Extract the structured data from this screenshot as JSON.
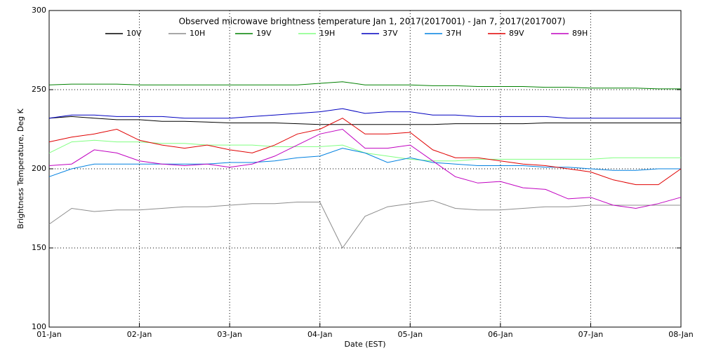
{
  "chart_data": {
    "type": "line",
    "title": "Observed microwave brightness temperature Jan  1, 2017(2017001) - Jan  7, 2017(2017007)",
    "x_label": "Date (EST)",
    "y_label": "Brightness Temperature, Deg K",
    "x": [
      0,
      0.25,
      0.5,
      0.75,
      1,
      1.25,
      1.5,
      1.75,
      2,
      2.25,
      2.5,
      2.75,
      3,
      3.25,
      3.5,
      3.75,
      4,
      4.25,
      4.5,
      4.75,
      5,
      5.25,
      5.5,
      5.75,
      6,
      6.25,
      6.5,
      6.75,
      7
    ],
    "xlim": [
      0,
      7
    ],
    "xticks": [
      {
        "value": 0,
        "label": "01-Jan"
      },
      {
        "value": 1,
        "label": "02-Jan"
      },
      {
        "value": 2,
        "label": "03-Jan"
      },
      {
        "value": 3,
        "label": "04-Jan"
      },
      {
        "value": 4,
        "label": "05-Jan"
      },
      {
        "value": 5,
        "label": "06-Jan"
      },
      {
        "value": 6,
        "label": "07-Jan"
      },
      {
        "value": 7,
        "label": "08-Jan"
      }
    ],
    "ylim": [
      100,
      300
    ],
    "yticks": [
      100,
      150,
      200,
      250,
      300
    ],
    "grid": true,
    "series": [
      {
        "name": "10V",
        "color": "#000000",
        "values": [
          232,
          233,
          232,
          231,
          231,
          230,
          230,
          229.5,
          229,
          229,
          229,
          228.5,
          228,
          228,
          228,
          228,
          228,
          228,
          228.5,
          228.5,
          228.5,
          228.5,
          229,
          229,
          229,
          229,
          229,
          229,
          229
        ]
      },
      {
        "name": "10H",
        "color": "#8c8c8c",
        "values": [
          165,
          175,
          173,
          174,
          174,
          175,
          176,
          176,
          177,
          178,
          178,
          179,
          179,
          150,
          170,
          176,
          178,
          180,
          175,
          174,
          174,
          175,
          176,
          176,
          177,
          177,
          177,
          177,
          177
        ]
      },
      {
        "name": "19V",
        "color": "#008000",
        "values": [
          253,
          253.5,
          253.5,
          253.5,
          253,
          253,
          253,
          253,
          253,
          253,
          253,
          253,
          254,
          255,
          253,
          253,
          253,
          252.5,
          252.5,
          252,
          252,
          252,
          251.5,
          251.5,
          251,
          251,
          251,
          250.5,
          250.5
        ]
      },
      {
        "name": "19H",
        "color": "#80ff80",
        "values": [
          210,
          217,
          218,
          217,
          217,
          216,
          216,
          215,
          215,
          215,
          214,
          214,
          214,
          215,
          210,
          208,
          206,
          205,
          205,
          206,
          206,
          206,
          206,
          206,
          206,
          207,
          207,
          207,
          207
        ]
      },
      {
        "name": "37V",
        "color": "#0000c0",
        "values": [
          232,
          234,
          234,
          233,
          233,
          233,
          232,
          232,
          232,
          233,
          234,
          235,
          236,
          238,
          235,
          236,
          236,
          234,
          234,
          233,
          233,
          233,
          233,
          232,
          232,
          232,
          232,
          232,
          232
        ]
      },
      {
        "name": "37H",
        "color": "#0080e0",
        "values": [
          195,
          200,
          203,
          203,
          203,
          203,
          203,
          203,
          204,
          204,
          205,
          207,
          208,
          213,
          210,
          204,
          207,
          204,
          203,
          202,
          202,
          202,
          201,
          201,
          200,
          199,
          199,
          200,
          200
        ]
      },
      {
        "name": "89V",
        "color": "#e00000",
        "values": [
          217,
          220,
          222,
          225,
          218,
          215,
          213,
          215,
          212,
          210,
          215,
          222,
          225,
          232,
          222,
          222,
          223,
          212,
          207,
          207,
          205,
          203,
          202,
          200,
          198,
          193,
          190,
          190,
          200
        ]
      },
      {
        "name": "89H",
        "color": "#c000c0",
        "values": [
          202,
          203,
          212,
          210,
          205,
          203,
          202,
          203,
          201,
          203,
          208,
          215,
          222,
          225,
          213,
          213,
          215,
          205,
          195,
          191,
          192,
          188,
          187,
          181,
          182,
          177,
          175,
          178,
          182
        ]
      }
    ]
  }
}
